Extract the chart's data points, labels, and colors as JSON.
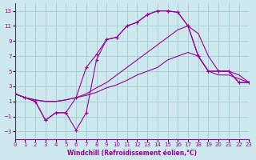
{
  "xlabel": "Windchill (Refroidissement éolien,°C)",
  "xlim": [
    0,
    23
  ],
  "ylim": [
    -4,
    14
  ],
  "xticks": [
    0,
    1,
    2,
    3,
    4,
    5,
    6,
    7,
    8,
    9,
    10,
    11,
    12,
    13,
    14,
    15,
    16,
    17,
    18,
    19,
    20,
    21,
    22,
    23
  ],
  "yticks": [
    -3,
    -1,
    1,
    3,
    5,
    7,
    9,
    11,
    13
  ],
  "bg_color": "#cde9ee",
  "line_color": "#990099",
  "grid_color": "#aacfd8",
  "line1_y": [
    2.0,
    1.5,
    1.0,
    -1.5,
    -0.5,
    -0.5,
    -2.8,
    -0.5,
    6.5,
    9.2,
    9.5,
    11.0,
    11.5,
    12.5,
    13.0,
    13.0,
    12.8,
    11.0,
    7.0,
    5.0,
    5.0,
    5.0,
    3.5,
    3.5
  ],
  "line2_y": [
    2.0,
    1.5,
    1.0,
    -1.5,
    -0.5,
    -0.5,
    1.5,
    5.5,
    7.2,
    9.2,
    9.5,
    11.0,
    11.5,
    12.5,
    13.0,
    13.0,
    12.8,
    11.0,
    7.0,
    5.0,
    5.0,
    5.0,
    3.5,
    3.5
  ],
  "line3_y": [
    2.0,
    1.5,
    1.2,
    1.0,
    1.0,
    1.2,
    1.5,
    2.0,
    2.8,
    3.5,
    4.5,
    5.5,
    6.5,
    7.5,
    8.5,
    9.5,
    10.5,
    11.0,
    10.0,
    7.0,
    5.0,
    5.0,
    4.5,
    3.5
  ],
  "line4_y": [
    2.0,
    1.5,
    1.2,
    1.0,
    1.0,
    1.2,
    1.5,
    1.8,
    2.2,
    2.8,
    3.2,
    3.8,
    4.5,
    5.0,
    5.5,
    6.5,
    7.0,
    7.5,
    7.0,
    5.0,
    4.5,
    4.5,
    4.0,
    3.5
  ]
}
